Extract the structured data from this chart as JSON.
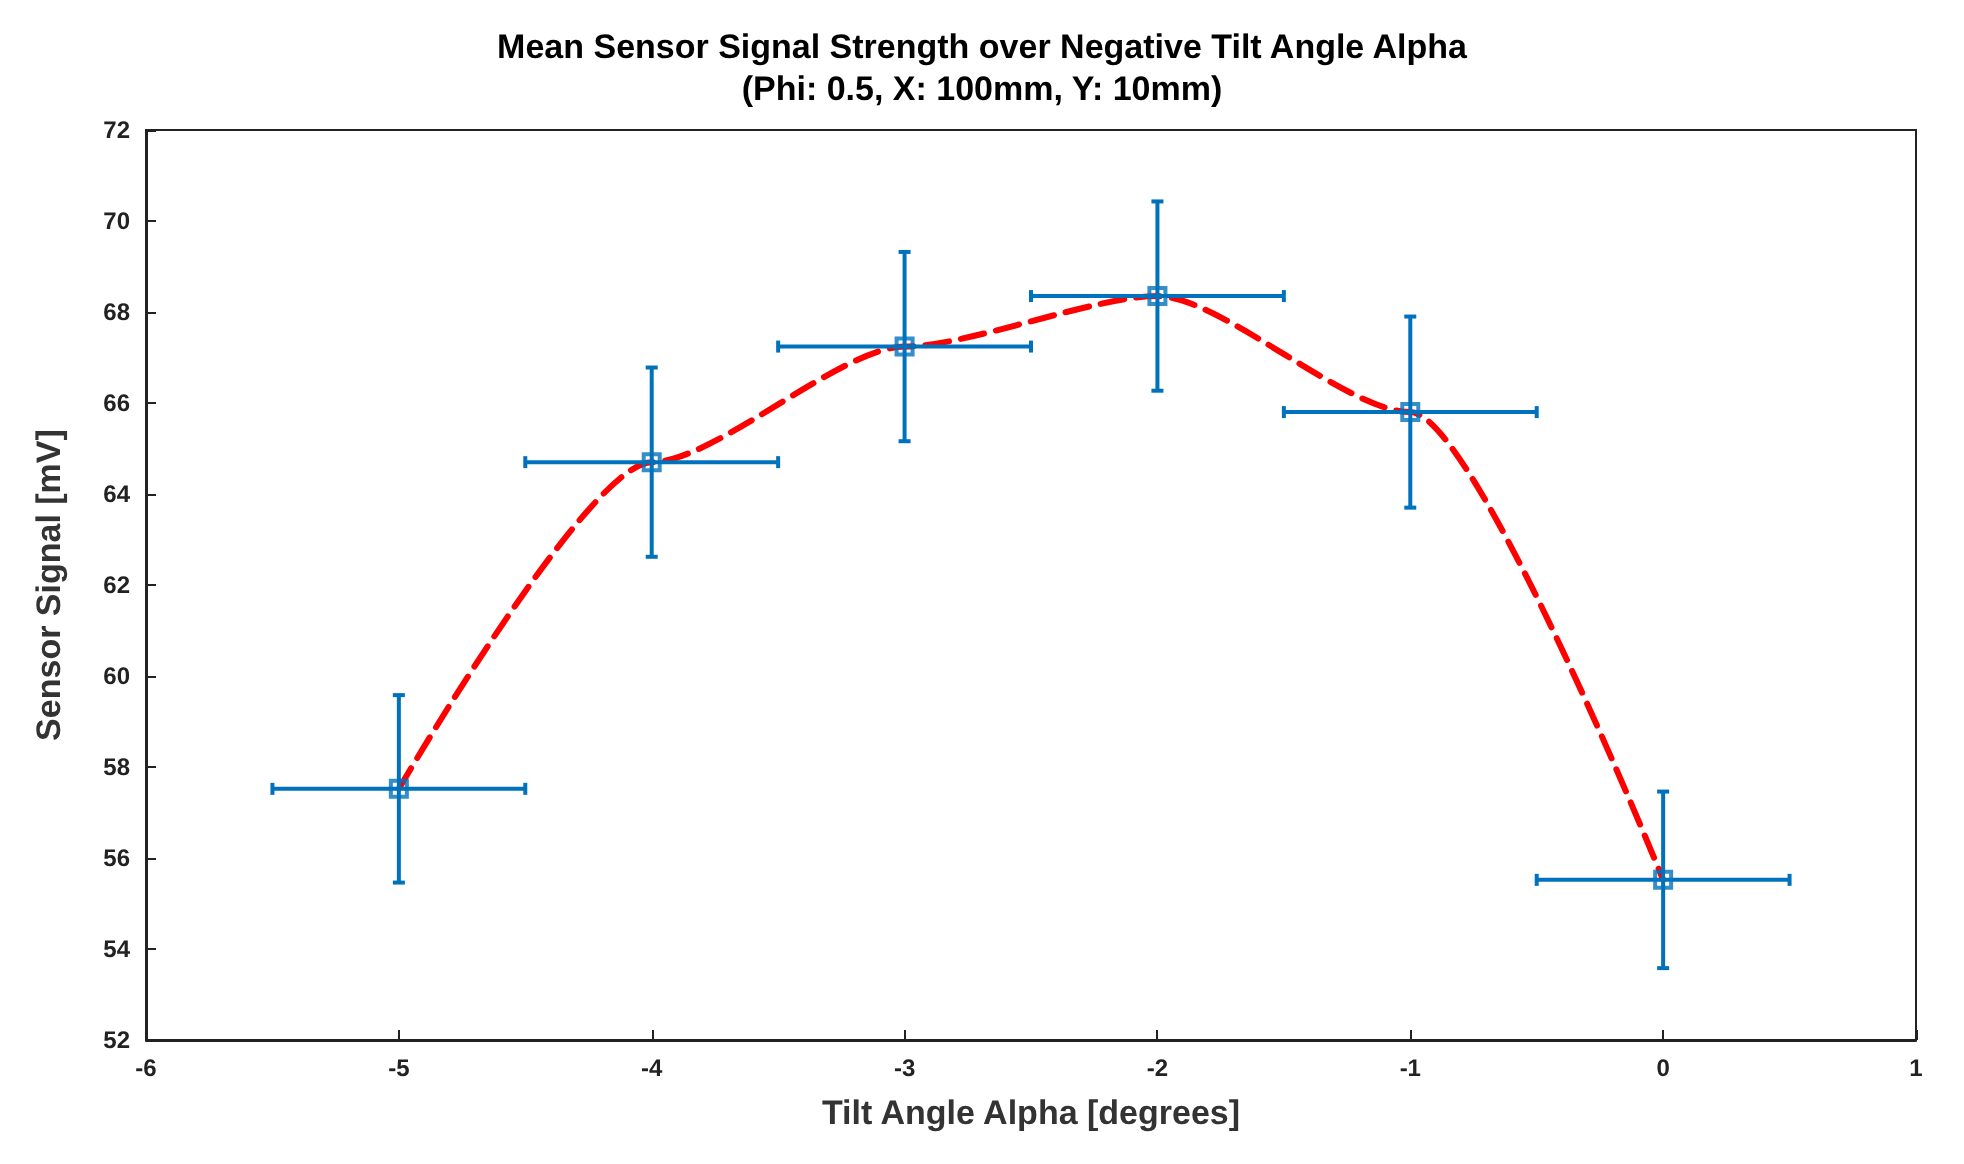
{
  "chart_data": {
    "type": "scatter",
    "title": "Mean Sensor Signal Strength over Negative Tilt Angle Alpha",
    "subtitle": "(Phi: 0.5, X: 100mm, Y: 10mm)",
    "xlabel": "Tilt Angle Alpha [degrees]",
    "ylabel": "Sensor Signal [mV]",
    "x": [
      -5,
      -4,
      -3,
      -2,
      -1,
      0
    ],
    "series": [
      {
        "color": "#0072bd",
        "marker": "square",
        "values": [
          57.52,
          64.7,
          67.24,
          68.35,
          65.8,
          55.52
        ],
        "errors": [
          2.06,
          2.08,
          2.08,
          2.08,
          2.1,
          1.94
        ],
        "xerrors": [
          0.5,
          0.5,
          0.5,
          0.5,
          0.5,
          0.5
        ]
      },
      {
        "type": "line",
        "color": "#ff0000",
        "line_style": "dashed",
        "marker": "none",
        "values": [
          57.52,
          64.7,
          67.24,
          68.35,
          65.8,
          55.52
        ]
      }
    ],
    "xlim": [
      -6,
      1
    ],
    "xticks": [
      -6,
      -5,
      -4,
      -3,
      -2,
      -1,
      0,
      1
    ],
    "ylim": [
      52,
      72
    ],
    "yticks": [
      52,
      54,
      56,
      58,
      60,
      62,
      64,
      66,
      68,
      70,
      72
    ],
    "grid": false
  }
}
